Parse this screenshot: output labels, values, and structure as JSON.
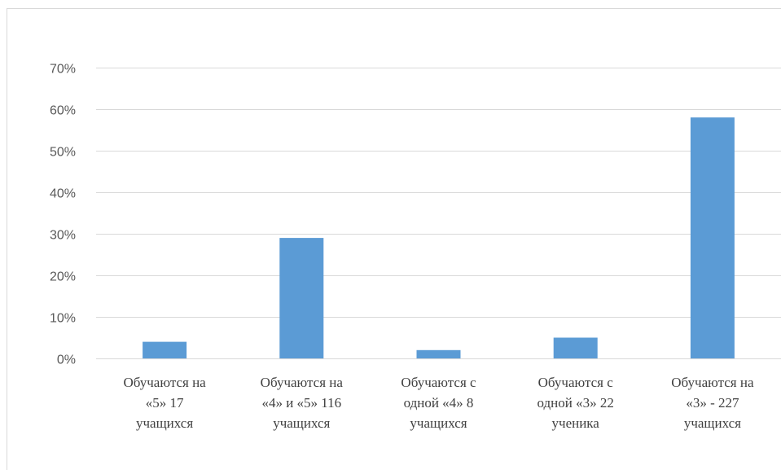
{
  "chart_data": {
    "type": "bar",
    "title": "",
    "xlabel": "",
    "ylabel": "",
    "ylim": [
      0,
      0.7
    ],
    "ytick_step": 0.1,
    "y_format": "percent",
    "grid": true,
    "legend": "none",
    "bar_color": "#5b9bd5",
    "gridline_color": "#d9d9d9",
    "categories": [
      [
        "Обучаются на",
        "«5» 17",
        "учащихся"
      ],
      [
        "Обучаются на",
        "«4» и «5» 116",
        "учащихся"
      ],
      [
        "Обучаются с",
        "одной «4» 8",
        "учащихся"
      ],
      [
        "Обучаются с",
        "одной «3» 22",
        "ученика"
      ],
      [
        "Обучаются на",
        "«3» - 227",
        "учащихся"
      ]
    ],
    "values": [
      0.04,
      0.29,
      0.02,
      0.05,
      0.58
    ]
  }
}
